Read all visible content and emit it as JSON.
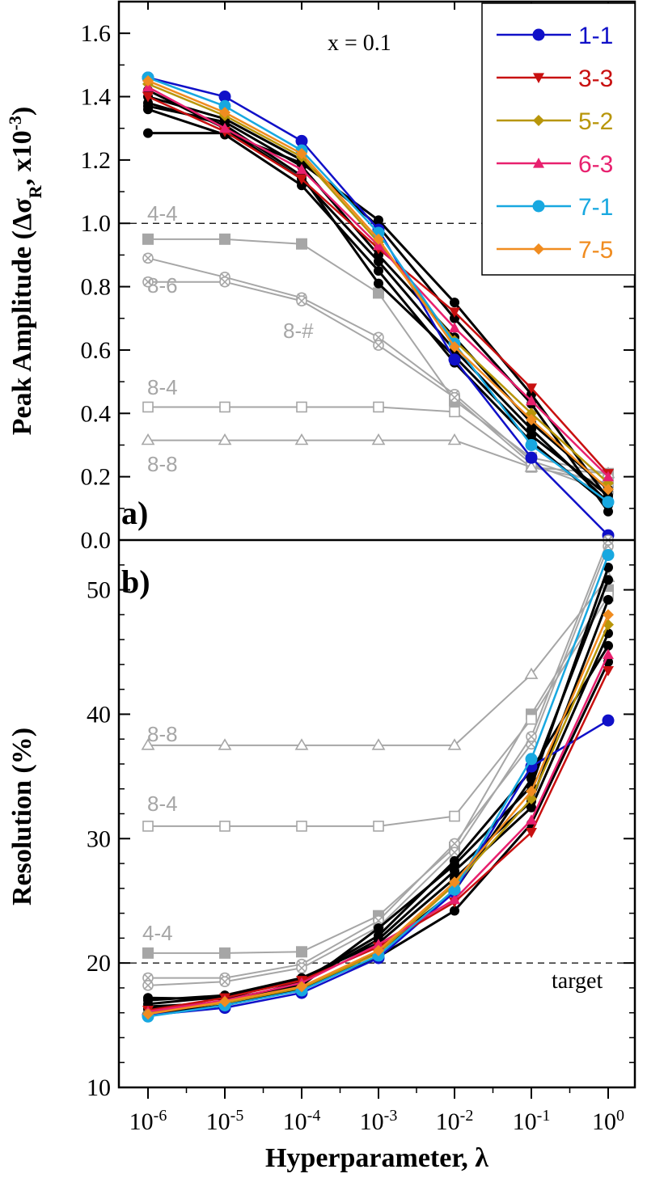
{
  "chart_data": [
    {
      "panel_label": "a)",
      "type": "line",
      "ylabel_main": "Peak Amplitude (Δσ",
      "ylabel_sub": "R",
      "ylabel_mid": ", x10",
      "ylabel_sup": "-3",
      "ylabel_end": ")",
      "ylim": [
        0.0,
        1.7
      ],
      "yticks": [
        "0.0",
        "0.2",
        "0.4",
        "0.6",
        "0.8",
        "1.0",
        "1.2",
        "1.4",
        "1.6"
      ],
      "annotation": "x = 0.1",
      "reference_line": 1.0,
      "series": [
        {
          "name": "1-1",
          "color": "#1010c8",
          "marker": "circle",
          "values": [
            1.46,
            1.4,
            1.26,
            0.98,
            0.57,
            0.26,
            0.015
          ]
        },
        {
          "name": "3-3",
          "color": "#c81010",
          "marker": "triangle-down",
          "values": [
            1.4,
            1.29,
            1.14,
            0.92,
            0.72,
            0.48,
            0.21
          ]
        },
        {
          "name": "5-2",
          "color": "#b8960a",
          "marker": "diamond",
          "values": [
            1.44,
            1.34,
            1.21,
            0.94,
            0.63,
            0.4,
            0.18
          ]
        },
        {
          "name": "6-3",
          "color": "#e8206e",
          "marker": "triangle-up",
          "values": [
            1.43,
            1.3,
            1.17,
            0.93,
            0.67,
            0.44,
            0.2
          ]
        },
        {
          "name": "7-1",
          "color": "#18a8e0",
          "marker": "circle",
          "values": [
            1.46,
            1.37,
            1.23,
            0.97,
            0.62,
            0.3,
            0.12
          ]
        },
        {
          "name": "7-5",
          "color": "#f08c20",
          "marker": "diamond",
          "values": [
            1.45,
            1.35,
            1.22,
            0.95,
            0.61,
            0.38,
            0.16
          ]
        }
      ],
      "gray_series": [
        {
          "name": "4-4",
          "marker": "square-filled",
          "values": [
            0.95,
            0.95,
            0.935,
            0.78,
            0.44,
            0.26,
            0.21
          ]
        },
        {
          "name": "8-6",
          "marker": "cross-circle",
          "values": [
            0.89,
            0.83,
            0.765,
            0.64,
            0.46,
            0.25,
            0.17
          ]
        },
        {
          "name": "8-#",
          "marker": "cross-circle",
          "values": [
            0.815,
            0.815,
            0.755,
            0.615,
            0.45,
            0.24,
            0.15
          ]
        },
        {
          "name": "8-4",
          "marker": "square-open",
          "values": [
            0.42,
            0.42,
            0.42,
            0.42,
            0.405,
            0.23,
            0.18
          ]
        },
        {
          "name": "8-8",
          "marker": "triangle-open",
          "values": [
            0.315,
            0.315,
            0.315,
            0.315,
            0.315,
            0.23,
            0.21
          ]
        }
      ],
      "gray_labels": [
        "4-4",
        "8-6",
        "8-#",
        "8-4",
        "8-8"
      ],
      "black_series": [
        [
          1.38,
          1.31,
          1.15,
          0.81,
          0.58,
          0.33,
          0.14
        ],
        [
          1.36,
          1.28,
          1.12,
          0.85,
          0.56,
          0.31,
          0.11
        ],
        [
          1.285,
          1.285,
          1.19,
          1.01,
          0.75,
          0.46,
          0.13
        ],
        [
          1.4,
          1.33,
          1.2,
          0.99,
          0.7,
          0.43,
          0.09
        ],
        [
          1.37,
          1.32,
          1.18,
          0.9,
          0.64,
          0.37,
          0.16
        ],
        [
          1.42,
          1.3,
          1.14,
          0.88,
          0.6,
          0.35,
          0.12
        ]
      ]
    },
    {
      "panel_label": "b)",
      "type": "line",
      "ylabel": "Resolution (%)",
      "ylim": [
        10,
        54
      ],
      "yticks": [
        "10",
        "20",
        "30",
        "40",
        "50"
      ],
      "annotation": "target",
      "reference_line": 20,
      "series": [
        {
          "name": "1-1",
          "color": "#1010c8",
          "marker": "circle",
          "values": [
            15.8,
            16.4,
            17.6,
            20.4,
            25.7,
            35.8,
            39.5
          ]
        },
        {
          "name": "3-3",
          "color": "#c81010",
          "marker": "triangle-down",
          "values": [
            16.2,
            17.2,
            18.6,
            21.3,
            24.9,
            30.5,
            43.5
          ]
        },
        {
          "name": "5-2",
          "color": "#b8960a",
          "marker": "diamond",
          "values": [
            16.0,
            16.8,
            18.0,
            20.8,
            26.3,
            33.2,
            47.2
          ]
        },
        {
          "name": "6-3",
          "color": "#e8206e",
          "marker": "triangle-up",
          "values": [
            16.1,
            17.0,
            18.4,
            21.5,
            25.1,
            31.5,
            44.8
          ]
        },
        {
          "name": "7-1",
          "color": "#18a8e0",
          "marker": "circle",
          "values": [
            15.7,
            16.6,
            17.8,
            20.6,
            25.9,
            36.4,
            52.8
          ]
        },
        {
          "name": "7-5",
          "color": "#f08c20",
          "marker": "diamond",
          "values": [
            15.9,
            16.9,
            18.1,
            21.0,
            26.5,
            33.8,
            48.0
          ]
        }
      ],
      "gray_series": [
        {
          "name": "4-4",
          "marker": "square-filled",
          "values": [
            20.8,
            20.8,
            20.9,
            23.8,
            29.3,
            40.0,
            50.0
          ]
        },
        {
          "name": "8-6",
          "marker": "cross-circle",
          "values": [
            18.8,
            18.8,
            19.9,
            23.4,
            29.6,
            37.6,
            53.5
          ]
        },
        {
          "name": "8-#",
          "marker": "cross-circle",
          "values": [
            18.2,
            18.5,
            19.6,
            22.9,
            28.9,
            38.2,
            54.0
          ]
        },
        {
          "name": "8-4",
          "marker": "square-open",
          "values": [
            31.0,
            31.0,
            31.0,
            31.0,
            31.8,
            39.6,
            49.5
          ]
        },
        {
          "name": "8-8",
          "marker": "triangle-open",
          "values": [
            37.5,
            37.5,
            37.5,
            37.5,
            37.5,
            43.2,
            51.0
          ]
        }
      ],
      "gray_labels": [
        "8-8",
        "8-4",
        "4-4"
      ],
      "black_series": [
        [
          17.2,
          17.1,
          18.2,
          22.8,
          27.9,
          34.2,
          51.8
        ],
        [
          16.5,
          16.8,
          18.5,
          21.9,
          27.4,
          33.0,
          49.2
        ],
        [
          17.0,
          17.4,
          18.8,
          21.6,
          26.8,
          32.5,
          46.5
        ],
        [
          16.3,
          16.9,
          18.0,
          20.5,
          24.2,
          31.2,
          44.2
        ],
        [
          15.9,
          16.6,
          17.9,
          20.9,
          25.8,
          34.8,
          50.8
        ],
        [
          16.7,
          17.3,
          18.6,
          22.2,
          28.2,
          35.5,
          45.5
        ]
      ]
    }
  ],
  "x_axis": {
    "label": "Hyperparameter, λ",
    "ticks": [
      {
        "base": "10",
        "exp": "-6"
      },
      {
        "base": "10",
        "exp": "-5"
      },
      {
        "base": "10",
        "exp": "-4"
      },
      {
        "base": "10",
        "exp": "-3"
      },
      {
        "base": "10",
        "exp": "-2"
      },
      {
        "base": "10",
        "exp": "-1"
      },
      {
        "base": "10",
        "exp": "0"
      }
    ]
  }
}
